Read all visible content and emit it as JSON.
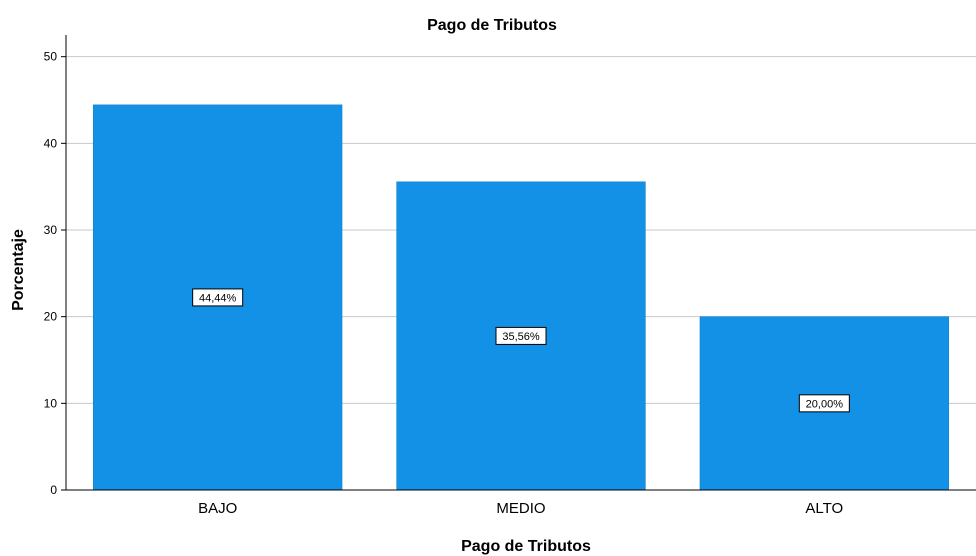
{
  "chart_data": {
    "type": "bar",
    "title": "Pago de Tributos",
    "xlabel": "Pago de Tributos",
    "ylabel": "Porcentaje",
    "categories": [
      "BAJO",
      "MEDIO",
      "ALTO"
    ],
    "values": [
      44.44,
      35.56,
      20.0
    ],
    "data_labels": [
      "44,44%",
      "35,56%",
      "20,00%"
    ],
    "ylim": [
      0,
      52.5
    ],
    "yticks": [
      0,
      10,
      20,
      30,
      40,
      50
    ],
    "grid": true,
    "bar_color": "#1391e6"
  }
}
